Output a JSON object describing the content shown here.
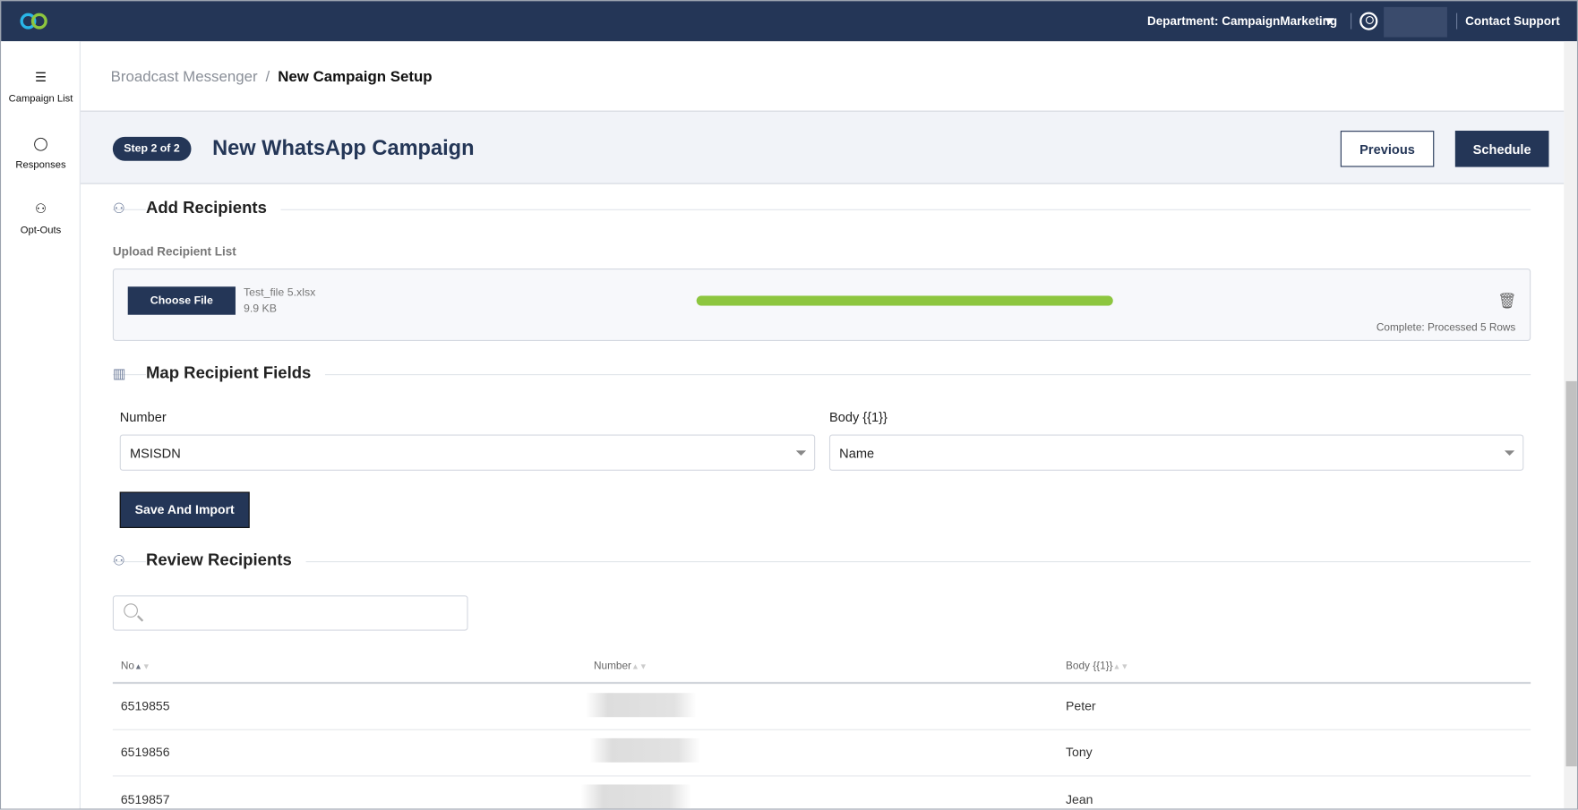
{
  "header": {
    "department": "Department: CampaignMarketing",
    "contact_support": "Contact Support"
  },
  "sidebar": {
    "items": [
      {
        "label": "Campaign List",
        "icon": "list-icon"
      },
      {
        "label": "Responses",
        "icon": "chat-bubble-icon"
      },
      {
        "label": "Opt-Outs",
        "icon": "user-x-icon"
      }
    ]
  },
  "breadcrumb": {
    "parent": "Broadcast Messenger",
    "separator": "/",
    "current": "New Campaign Setup"
  },
  "campaign": {
    "step": "Step 2 of 2",
    "title": "New WhatsApp Campaign",
    "previous": "Previous",
    "schedule": "Schedule"
  },
  "add_recipients": {
    "heading": "Add Recipients",
    "upload_label": "Upload Recipient List",
    "choose_file": "Choose File",
    "file_name": "Test_file 5.xlsx",
    "file_size": "9.9 KB",
    "progress_percent": 100,
    "status": "Complete: Processed 5 Rows"
  },
  "map_fields": {
    "heading": "Map Recipient Fields",
    "number_label": "Number",
    "number_value": "MSISDN",
    "body_label": "Body {{1}}",
    "body_value": "Name",
    "save": "Save And Import"
  },
  "review": {
    "heading": "Review Recipients",
    "search_placeholder": "",
    "columns": [
      "No",
      "Number",
      "Body {{1}}"
    ],
    "rows": [
      {
        "no": "6519855",
        "body": "Peter"
      },
      {
        "no": "6519856",
        "body": "Tony"
      },
      {
        "no": "6519857",
        "body": "Jean"
      }
    ]
  },
  "colors": {
    "brand": "#243657",
    "progress": "#8dc63f"
  }
}
